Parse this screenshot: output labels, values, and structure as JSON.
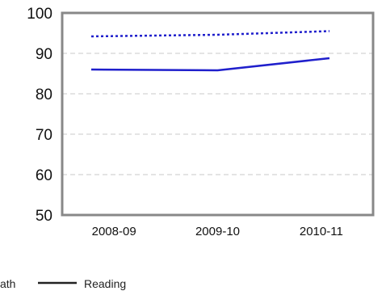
{
  "chart_data": {
    "type": "line",
    "categories": [
      "2008-09",
      "2009-10",
      "2010-11"
    ],
    "series": [
      {
        "name": "Math",
        "values": [
          94.2,
          94.6,
          95.5
        ],
        "color": "#1f1fcc",
        "style": "dotted"
      },
      {
        "name": "Reading",
        "values": [
          86.0,
          85.8,
          88.8
        ],
        "color": "#1f1fcc",
        "style": "solid"
      }
    ],
    "ylim": [
      50,
      100
    ],
    "yticks": [
      50,
      60,
      70,
      80,
      90,
      100
    ],
    "grid": true,
    "legend_position": "bottom-left",
    "legend_labels": {
      "math_clipped": "ath"
    },
    "colors": {
      "line": "#1f1fcc",
      "axis": "#888888",
      "grid": "#c8c8c8",
      "legend_line": "#222222"
    }
  }
}
